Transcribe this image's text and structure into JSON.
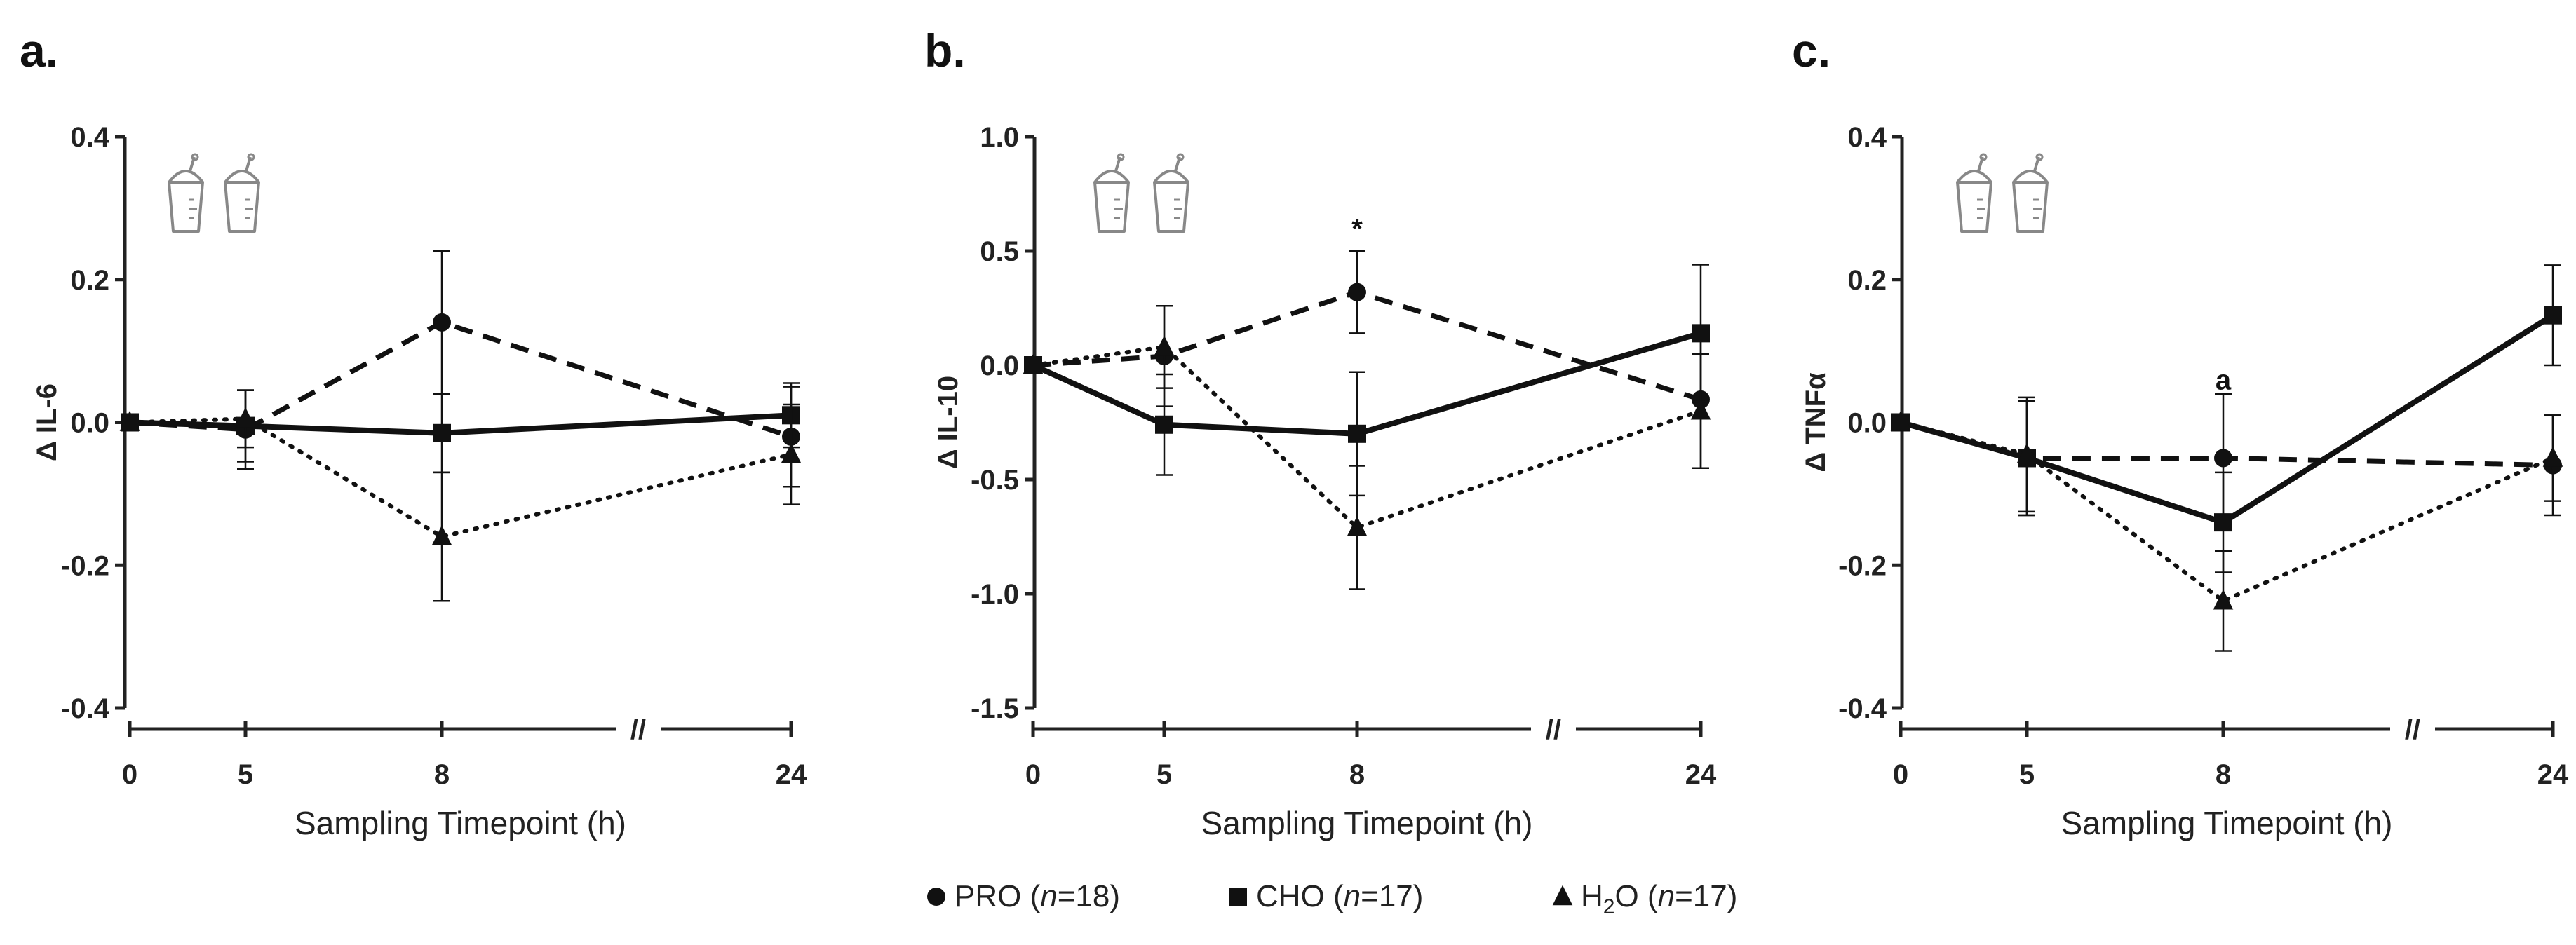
{
  "chart_data": [
    {
      "type": "line",
      "panel_label": "a.",
      "ylabel": "Δ IL-6",
      "xlabel": "Sampling Timepoint (h)",
      "x": [
        0,
        5,
        8,
        24
      ],
      "x_tick_labels": [
        "0",
        "5",
        "8",
        "24"
      ],
      "axis_break": "//",
      "ylim": [
        -0.4,
        0.4
      ],
      "y_ticks": [
        -0.4,
        -0.2,
        0.0,
        0.2,
        0.4
      ],
      "y_tick_labels": [
        "-0.4",
        "-0.2",
        "0.0",
        "0.2",
        "0.4"
      ],
      "series": [
        {
          "key": "pro",
          "values": [
            0.0,
            -0.01,
            0.14,
            -0.02
          ],
          "errors": [
            0,
            0.055,
            0.1,
            0.07
          ]
        },
        {
          "key": "cho",
          "values": [
            0.0,
            -0.005,
            -0.015,
            0.01
          ],
          "errors": [
            0,
            0.05,
            0.055,
            0.045
          ]
        },
        {
          "key": "h2o",
          "values": [
            0.0,
            0.005,
            -0.16,
            -0.045
          ],
          "errors": [
            0,
            0.04,
            0.09,
            0.07
          ]
        }
      ],
      "annotations": [],
      "drink_icons": 2
    },
    {
      "type": "line",
      "panel_label": "b.",
      "ylabel": "Δ IL-10",
      "xlabel": "Sampling Timepoint (h)",
      "x": [
        0,
        5,
        8,
        24
      ],
      "x_tick_labels": [
        "0",
        "5",
        "8",
        "24"
      ],
      "axis_break": "//",
      "ylim": [
        -1.5,
        1.0
      ],
      "y_ticks": [
        -1.5,
        -1.0,
        -0.5,
        0.0,
        0.5,
        1.0
      ],
      "y_tick_labels": [
        "-1.5",
        "-1.0",
        "-0.5",
        "0.0",
        "0.5",
        "1.0"
      ],
      "series": [
        {
          "key": "pro",
          "values": [
            0.0,
            0.04,
            0.32,
            -0.15
          ],
          "errors": [
            0,
            0.22,
            0.18,
            0.3
          ]
        },
        {
          "key": "cho",
          "values": [
            0.0,
            -0.26,
            -0.3,
            0.14
          ],
          "errors": [
            0,
            0.22,
            0.27,
            0.3
          ]
        },
        {
          "key": "h2o",
          "values": [
            0.0,
            0.08,
            -0.71,
            -0.2
          ],
          "errors": [
            0,
            0.18,
            0.27,
            0.25
          ]
        }
      ],
      "annotations": [
        {
          "x": 8,
          "y": 0.6,
          "text": "*"
        }
      ],
      "drink_icons": 2
    },
    {
      "type": "line",
      "panel_label": "c.",
      "ylabel": "Δ TNFα",
      "xlabel": "Sampling Timepoint (h)",
      "x": [
        0,
        5,
        8,
        24
      ],
      "x_tick_labels": [
        "0",
        "5",
        "8",
        "24"
      ],
      "axis_break": "//",
      "ylim": [
        -0.4,
        0.4
      ],
      "y_ticks": [
        -0.4,
        -0.2,
        0.0,
        0.2,
        0.4
      ],
      "y_tick_labels": [
        "-0.4",
        "-0.2",
        "0.0",
        "0.2",
        "0.4"
      ],
      "series": [
        {
          "key": "pro",
          "values": [
            0.0,
            -0.05,
            -0.05,
            -0.06
          ],
          "errors": [
            0,
            0.08,
            0.09,
            0.07
          ]
        },
        {
          "key": "cho",
          "values": [
            0.0,
            -0.05,
            -0.14,
            0.15
          ],
          "errors": [
            0,
            0.08,
            0.07,
            0.07
          ]
        },
        {
          "key": "h2o",
          "values": [
            0.0,
            -0.045,
            -0.25,
            -0.05
          ],
          "errors": [
            0,
            0.08,
            0.07,
            0.06
          ]
        }
      ],
      "annotations": [
        {
          "x": 8,
          "y": 0.06,
          "text": "a"
        }
      ],
      "drink_icons": 2
    }
  ],
  "legend": {
    "placement": "bottom-center",
    "entries": [
      {
        "key": "pro",
        "marker": "circle",
        "line_style": "dashed",
        "label_main": "PRO (",
        "label_italic": "n",
        "label_rest": "=18)"
      },
      {
        "key": "cho",
        "marker": "square",
        "line_style": "solid",
        "label_main": "CHO (",
        "label_italic": "n",
        "label_rest": "=17)"
      },
      {
        "key": "h2o",
        "marker": "triangle",
        "line_style": "dotted",
        "label_main": "H",
        "label_sub": "2",
        "label_mid": "O (",
        "label_italic": "n",
        "label_rest": "=17)"
      }
    ]
  },
  "colors": {
    "ink": "#111111",
    "axis": "#222222",
    "icon": "#888888"
  }
}
